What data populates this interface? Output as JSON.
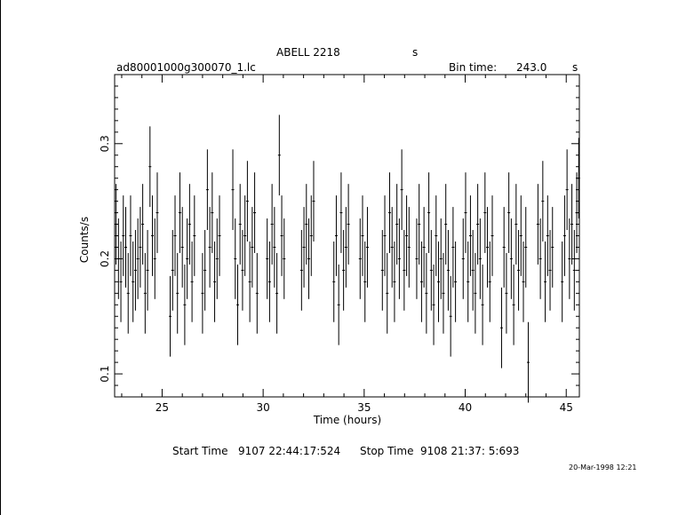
{
  "header": {
    "object": "ABELL 2218",
    "object_unit": "s",
    "filename": "ad80001000g300070_1.lc",
    "bin_label": "Bin time:",
    "bin_value": "243.0",
    "bin_unit": "s"
  },
  "footer": {
    "start_label": "Start Time",
    "start_value": "9107 22:44:17:524",
    "stop_label": "Stop Time",
    "stop_value": "9108 21:37: 5:693",
    "datestamp": "20-Mar-1998 12:21"
  },
  "chart_data": {
    "type": "scatter",
    "xlabel": "Time (hours)",
    "ylabel": "Counts/s",
    "xlim": [
      22.65,
      45.65
    ],
    "ylim": [
      0.08,
      0.36
    ],
    "xticks": [
      25,
      30,
      35,
      40,
      45
    ],
    "xtick_labels": [
      "25",
      "30",
      "35",
      "40",
      "45"
    ],
    "yticks": [
      0.1,
      0.2,
      0.3
    ],
    "ytick_labels": [
      "0.1",
      "0.2",
      "0.3"
    ],
    "grid": false,
    "error_bar_halfwidth": 0.035,
    "series": [
      {
        "x": [
          22.72,
          22.84,
          22.96,
          23.08,
          23.2,
          23.32,
          23.44,
          23.56,
          23.68,
          23.8,
          23.92,
          24.04,
          24.16,
          24.28,
          24.4,
          24.52,
          24.64,
          24.76,
          25.4,
          25.52,
          25.64,
          25.76,
          25.88,
          26.0,
          26.12,
          26.24,
          26.36,
          26.48,
          26.6,
          27.0,
          27.12,
          27.24,
          27.36,
          27.48,
          27.6,
          27.72,
          27.84,
          28.5,
          28.62,
          28.74,
          28.86,
          28.98,
          29.1,
          29.22,
          29.34,
          29.46,
          29.58,
          29.7,
          30.2,
          30.32,
          30.44,
          30.56,
          30.68,
          30.8,
          30.92,
          31.04,
          31.9,
          32.02,
          32.14,
          32.26,
          32.38,
          32.5,
          33.5,
          33.62,
          33.74,
          33.86,
          33.98,
          34.1,
          34.22,
          34.8,
          34.92,
          35.04,
          35.16,
          35.9,
          36.02,
          36.14,
          36.26,
          36.38,
          36.5,
          36.62,
          36.74,
          36.86,
          36.98,
          37.1,
          37.22,
          37.6,
          37.72,
          37.84,
          37.96,
          38.08,
          38.2,
          38.32,
          38.44,
          38.56,
          38.68,
          38.8,
          38.92,
          39.04,
          39.16,
          39.28,
          39.4,
          39.52,
          39.9,
          40.02,
          40.14,
          40.26,
          40.38,
          40.5,
          40.62,
          40.74,
          40.86,
          40.98,
          41.1,
          41.22,
          41.34,
          41.8,
          41.92,
          42.04,
          42.16,
          42.28,
          42.4,
          42.52,
          42.64,
          42.76,
          42.88,
          43.0,
          43.12,
          43.6,
          43.72,
          43.84,
          43.96,
          44.08,
          44.2,
          44.32,
          44.8,
          44.92,
          45.04,
          45.16,
          45.28,
          45.4,
          45.52,
          45.62
        ],
        "y": [
          0.23,
          0.2,
          0.18,
          0.22,
          0.21,
          0.17,
          0.22,
          0.18,
          0.19,
          0.2,
          0.21,
          0.23,
          0.17,
          0.19,
          0.28,
          0.22,
          0.2,
          0.24,
          0.15,
          0.19,
          0.22,
          0.17,
          0.24,
          0.21,
          0.16,
          0.2,
          0.23,
          0.18,
          0.22,
          0.17,
          0.19,
          0.26,
          0.21,
          0.24,
          0.18,
          0.2,
          0.22,
          0.26,
          0.2,
          0.16,
          0.23,
          0.19,
          0.22,
          0.25,
          0.18,
          0.21,
          0.24,
          0.17,
          0.2,
          0.18,
          0.23,
          0.21,
          0.17,
          0.29,
          0.22,
          0.2,
          0.19,
          0.21,
          0.23,
          0.2,
          0.22,
          0.25,
          0.18,
          0.22,
          0.16,
          0.24,
          0.19,
          0.21,
          0.23,
          0.2,
          0.22,
          0.18,
          0.21,
          0.19,
          0.22,
          0.17,
          0.24,
          0.21,
          0.18,
          0.23,
          0.2,
          0.26,
          0.19,
          0.22,
          0.21,
          0.2,
          0.23,
          0.18,
          0.21,
          0.17,
          0.24,
          0.19,
          0.16,
          0.22,
          0.18,
          0.2,
          0.17,
          0.23,
          0.19,
          0.15,
          0.21,
          0.18,
          0.2,
          0.24,
          0.18,
          0.22,
          0.19,
          0.17,
          0.23,
          0.2,
          0.16,
          0.24,
          0.21,
          0.18,
          0.22,
          0.14,
          0.21,
          0.17,
          0.24,
          0.2,
          0.16,
          0.23,
          0.19,
          0.22,
          0.18,
          0.21,
          0.11,
          0.23,
          0.2,
          0.25,
          0.18,
          0.22,
          0.19,
          0.21,
          0.18,
          0.22,
          0.26,
          0.2,
          0.23,
          0.19,
          0.24,
          0.27
        ]
      }
    ]
  }
}
